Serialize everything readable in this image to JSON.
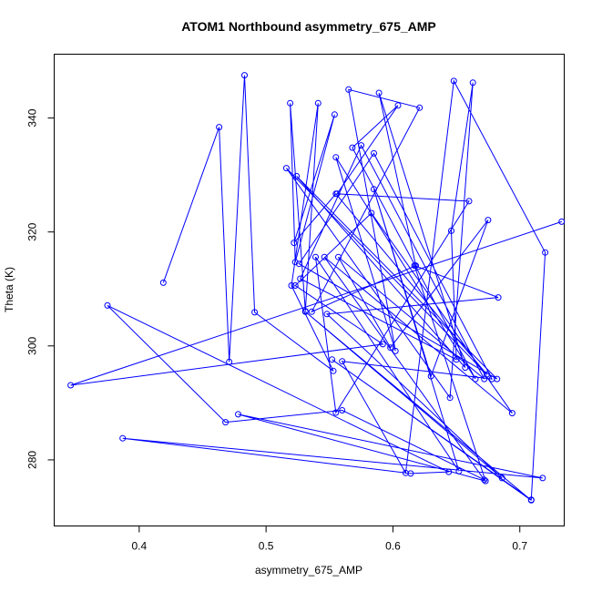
{
  "chart_data": {
    "type": "line",
    "title": "ATOM1 Northbound asymmetry_675_AMP",
    "xlabel": "asymmetry_675_AMP",
    "ylabel": "Theta (K)",
    "xlim": [
      0.333,
      0.735
    ],
    "ylim": [
      268.4,
      351.2
    ],
    "xticks": [
      0.4,
      0.5,
      0.6,
      0.7
    ],
    "xtick_labels": [
      "0.4",
      "0.5",
      "0.6",
      "0.7"
    ],
    "yticks": [
      280,
      300,
      320,
      340
    ],
    "ytick_labels": [
      "280",
      "300",
      "320",
      "340"
    ],
    "grid": false,
    "marker": "open-circle",
    "color": "#0000ff",
    "points": [
      [
        0.419,
        311.1
      ],
      [
        0.463,
        338.4
      ],
      [
        0.471,
        297.2
      ],
      [
        0.483,
        347.5
      ],
      [
        0.491,
        305.9
      ],
      [
        0.553,
        295.6
      ],
      [
        0.52,
        310.6
      ],
      [
        0.541,
        342.6
      ],
      [
        0.531,
        306.1
      ],
      [
        0.519,
        342.6
      ],
      [
        0.523,
        314.7
      ],
      [
        0.554,
        340.6
      ],
      [
        0.522,
        318.1
      ],
      [
        0.555,
        326.7
      ],
      [
        0.674,
        295.0
      ],
      [
        0.516,
        331.2
      ],
      [
        0.645,
        290.9
      ],
      [
        0.663,
        346.2
      ],
      [
        0.646,
        320.2
      ],
      [
        0.65,
        297.6
      ],
      [
        0.527,
        311.8
      ],
      [
        0.575,
        335.2
      ],
      [
        0.672,
        294.2
      ],
      [
        0.557,
        315.6
      ],
      [
        0.598,
        299.7
      ],
      [
        0.675,
        322.1
      ],
      [
        0.63,
        294.7
      ],
      [
        0.585,
        327.5
      ],
      [
        0.652,
        278.0
      ],
      [
        0.539,
        315.6
      ],
      [
        0.555,
        288.3
      ],
      [
        0.66,
        325.4
      ],
      [
        0.556,
        326.7
      ],
      [
        0.604,
        342.2
      ],
      [
        0.568,
        334.8
      ],
      [
        0.665,
        294.2
      ],
      [
        0.555,
        333.1
      ],
      [
        0.602,
        299.1
      ],
      [
        0.565,
        345.0
      ],
      [
        0.621,
        341.8
      ],
      [
        0.536,
        306.0
      ],
      [
        0.618,
        314.1
      ],
      [
        0.589,
        344.4
      ],
      [
        0.657,
        296.2
      ],
      [
        0.524,
        329.8
      ],
      [
        0.682,
        294.2
      ],
      [
        0.526,
        314.4
      ],
      [
        0.585,
        333.8
      ],
      [
        0.678,
        294.2
      ],
      [
        0.56,
        297.3
      ],
      [
        0.61,
        277.7
      ],
      [
        0.648,
        346.5
      ],
      [
        0.72,
        316.4
      ],
      [
        0.709,
        273.0
      ],
      [
        0.552,
        297.6
      ],
      [
        0.709,
        272.9
      ],
      [
        0.531,
        306.0
      ],
      [
        0.686,
        276.8
      ],
      [
        0.548,
        305.6
      ],
      [
        0.683,
        308.5
      ],
      [
        0.617,
        314.1
      ],
      [
        0.673,
        276.3
      ],
      [
        0.478,
        288.0
      ],
      [
        0.718,
        276.8
      ],
      [
        0.387,
        283.8
      ],
      [
        0.614,
        277.6
      ],
      [
        0.644,
        277.9
      ],
      [
        0.375,
        307.1
      ],
      [
        0.468,
        286.6
      ],
      [
        0.56,
        288.7
      ],
      [
        0.672,
        276.5
      ],
      [
        0.546,
        315.6
      ],
      [
        0.694,
        288.2
      ],
      [
        0.583,
        323.3
      ],
      [
        0.523,
        310.6
      ],
      [
        0.592,
        300.3
      ],
      [
        0.346,
        293.1
      ],
      [
        0.733,
        321.8
      ]
    ]
  }
}
